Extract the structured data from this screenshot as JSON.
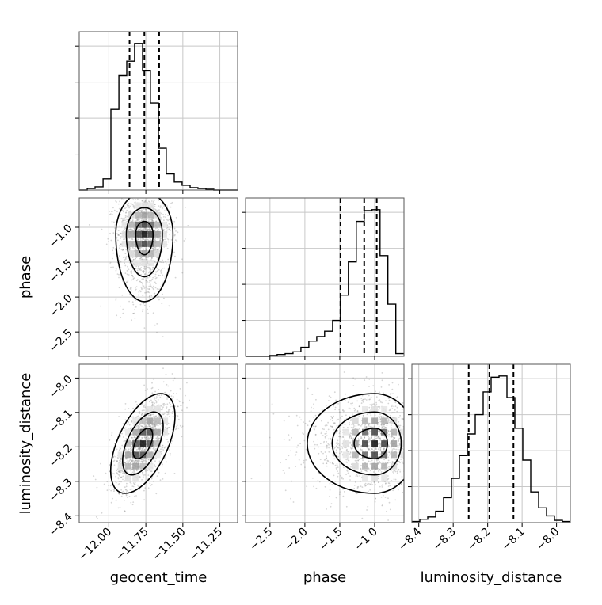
{
  "chart_data": {
    "type": "corner",
    "parameters": [
      "geocent_time",
      "phase",
      "luminosity_distance"
    ],
    "axis_labels": {
      "geocent_time": "geocent_time",
      "phase": "phase",
      "luminosity_distance": "luminosity_distance"
    },
    "ranges": {
      "geocent_time": [
        -12.2,
        -11.13
      ],
      "phase": [
        -2.85,
        -0.58
      ],
      "luminosity_distance": [
        -8.42,
        -7.96
      ]
    },
    "ticks": {
      "geocent_time": [
        -12.0,
        -11.75,
        -11.5,
        -11.25
      ],
      "phase": [
        -2.5,
        -2.0,
        -1.5,
        -1.0
      ],
      "luminosity_distance": [
        -8.4,
        -8.3,
        -8.2,
        -8.1,
        -8.0
      ]
    },
    "tick_labels": {
      "geocent_time": [
        "−12.00",
        "−11.75",
        "−11.50",
        "−11.25"
      ],
      "phase": [
        "−2.5",
        "−2.0",
        "−1.5",
        "−1.0"
      ],
      "luminosity_distance": [
        "−8.4",
        "−8.3",
        "−8.2",
        "−8.1",
        "−8.0"
      ]
    },
    "quantiles": {
      "geocent_time": [
        -11.86,
        -11.76,
        -11.66
      ],
      "phase": [
        -1.49,
        -1.15,
        -0.97
      ],
      "luminosity_distance": [
        -8.255,
        -8.195,
        -8.125
      ]
    },
    "histograms": {
      "geocent_time": {
        "edges": [
          -12.2,
          -12.146,
          -12.093,
          -12.039,
          -11.986,
          -11.932,
          -11.879,
          -11.826,
          -11.772,
          -11.719,
          -11.665,
          -11.612,
          -11.558,
          -11.505,
          -11.451,
          -11.398,
          -11.344,
          -11.291,
          -11.237,
          -11.184,
          -11.13
        ],
        "counts": [
          0,
          2,
          4,
          14,
          100,
          142,
          160,
          182,
          148,
          108,
          52,
          20,
          10,
          6,
          3,
          2,
          1,
          0,
          0,
          0
        ]
      },
      "phase": {
        "edges": [
          -2.85,
          -2.737,
          -2.623,
          -2.51,
          -2.397,
          -2.283,
          -2.17,
          -2.057,
          -1.943,
          -1.83,
          -1.717,
          -1.603,
          -1.49,
          -1.377,
          -1.263,
          -1.15,
          -1.037,
          -0.923,
          -0.81,
          -0.697,
          -0.58
        ],
        "counts": [
          0,
          0,
          0,
          1,
          2,
          3,
          5,
          10,
          17,
          22,
          28,
          40,
          68,
          105,
          150,
          162,
          163,
          112,
          58,
          3
        ]
      },
      "luminosity_distance": {
        "edges": [
          -8.42,
          -8.397,
          -8.374,
          -8.351,
          -8.328,
          -8.305,
          -8.282,
          -8.259,
          -8.236,
          -8.213,
          -8.19,
          -8.167,
          -8.144,
          -8.121,
          -8.098,
          -8.075,
          -8.052,
          -8.029,
          -8.006,
          -7.983,
          -7.96
        ],
        "counts": [
          1,
          3,
          5,
          10,
          22,
          39,
          59,
          78,
          95,
          115,
          128,
          129,
          110,
          83,
          55,
          27,
          13,
          6,
          2,
          1
        ]
      }
    },
    "joint": [
      {
        "x": "geocent_time",
        "y": "phase",
        "center": [
          -11.76,
          -1.1
        ],
        "sd": [
          0.08,
          0.25
        ],
        "corr": 0.0,
        "skew_y": -1
      },
      {
        "x": "geocent_time",
        "y": "luminosity_distance",
        "center": [
          -11.77,
          -8.19
        ],
        "sd": [
          0.09,
          0.06
        ],
        "corr": 0.55,
        "skew_y": 0
      },
      {
        "x": "phase",
        "y": "luminosity_distance",
        "center": [
          -1.0,
          -8.19
        ],
        "sd": [
          0.25,
          0.06
        ],
        "corr": 0.0,
        "skew_x": -1
      }
    ],
    "contour_levels": [
      "1σ",
      "2σ",
      "3σ"
    ],
    "grid": true
  }
}
